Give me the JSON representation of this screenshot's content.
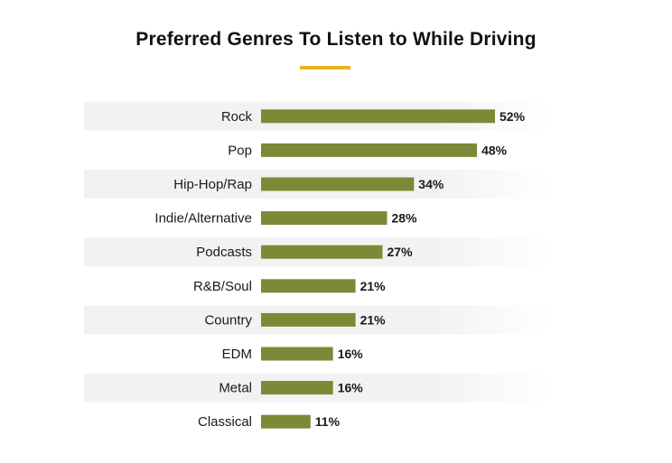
{
  "chart_data": {
    "type": "bar",
    "orientation": "horizontal",
    "title": "Preferred Genres To Listen to While Driving",
    "categories": [
      "Rock",
      "Pop",
      "Hip-Hop/Rap",
      "Indie/Alternative",
      "Podcasts",
      "R&B/Soul",
      "Country",
      "EDM",
      "Metal",
      "Classical"
    ],
    "values": [
      52,
      48,
      34,
      28,
      27,
      21,
      21,
      16,
      16,
      11
    ],
    "value_suffix": "%",
    "xlabel": "",
    "ylabel": "",
    "xlim": [
      0,
      100
    ],
    "grid": false,
    "legend": "none",
    "bar_color": "#7a8a36",
    "accent_color": "#e8b422",
    "band_color": "#f2f2f2"
  }
}
